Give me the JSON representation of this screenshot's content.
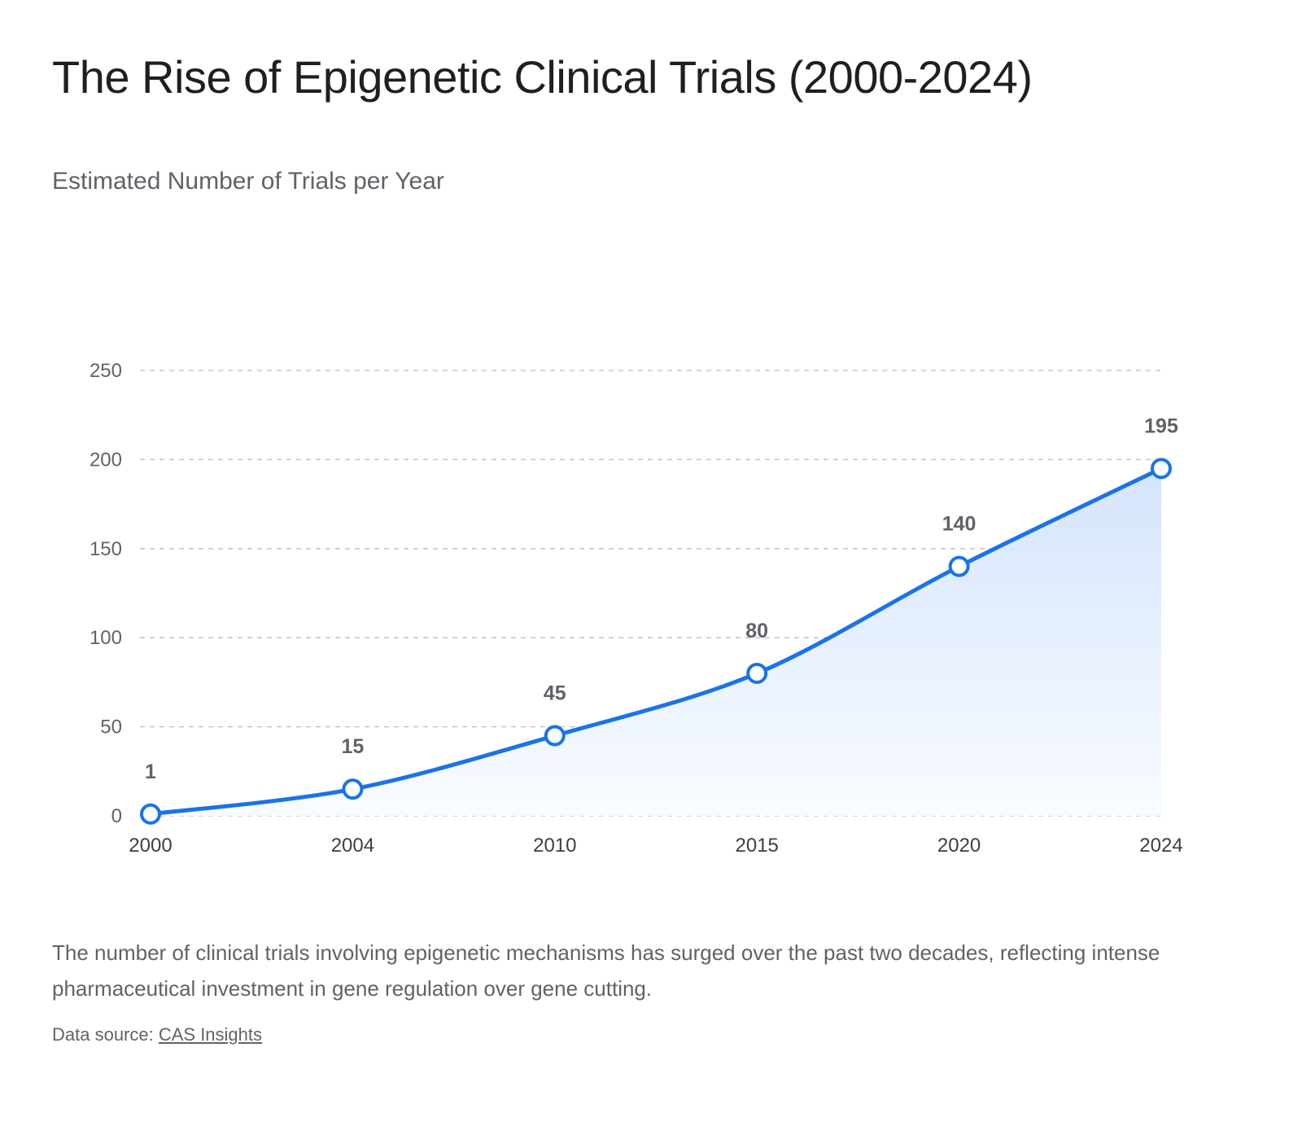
{
  "title": "The Rise of Epigenetic Clinical Trials (2000-2024)",
  "subtitle": "Estimated Number of Trials per Year",
  "description": "The number of clinical trials involving epigenetic mechanisms has surged over the past two decades, reflecting intense pharmaceutical investment in gene regulation over gene cutting.",
  "source": {
    "prefix": "Data source: ",
    "link_text": "CAS Insights"
  },
  "chart_data": {
    "type": "area",
    "title": "The Rise of Epigenetic Clinical Trials (2000-2024)",
    "ylabel": "",
    "xlabel": "",
    "categories": [
      "2000",
      "2004",
      "2010",
      "2015",
      "2020",
      "2024"
    ],
    "values": [
      1,
      15,
      45,
      80,
      140,
      195
    ],
    "data_labels": [
      "1",
      "15",
      "45",
      "80",
      "140",
      "195"
    ],
    "yticks": [
      0,
      50,
      100,
      150,
      200,
      250
    ],
    "ylim": [
      0,
      250
    ],
    "grid": "horizontal dashed",
    "legend": "none",
    "colors": {
      "line": "#1a73e8",
      "fill_top": "#d2e3fc",
      "fill_bottom": "#f8fbff",
      "grid": "#bdbdbd",
      "marker_fill": "#ffffff"
    }
  }
}
